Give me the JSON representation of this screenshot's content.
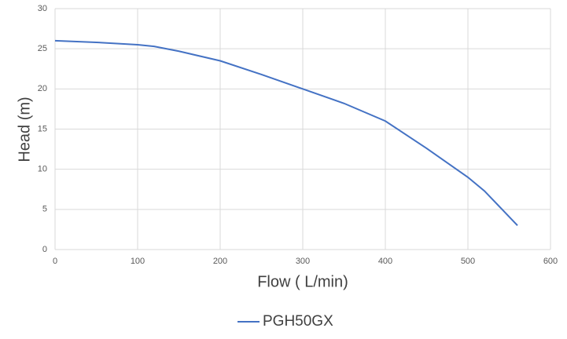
{
  "chart_data": {
    "type": "line",
    "x_label": "Flow ( L/min)",
    "y_label": "Head (m)",
    "series": [
      {
        "name": "PGH50GX",
        "color": "#4472c4",
        "x": [
          0,
          50,
          100,
          120,
          150,
          200,
          250,
          300,
          350,
          400,
          450,
          500,
          520,
          560
        ],
        "values": [
          26,
          25.8,
          25.5,
          25.3,
          24.7,
          23.5,
          21.8,
          20,
          18.2,
          16,
          12.6,
          9,
          7.3,
          3
        ]
      }
    ],
    "xlim": [
      0,
      600
    ],
    "xticks": [
      0,
      100,
      200,
      300,
      400,
      500,
      600
    ],
    "ylim": [
      0,
      30
    ],
    "yticks": [
      0,
      5,
      10,
      15,
      20,
      25,
      30
    ],
    "grid": true,
    "legend": "bottom"
  }
}
